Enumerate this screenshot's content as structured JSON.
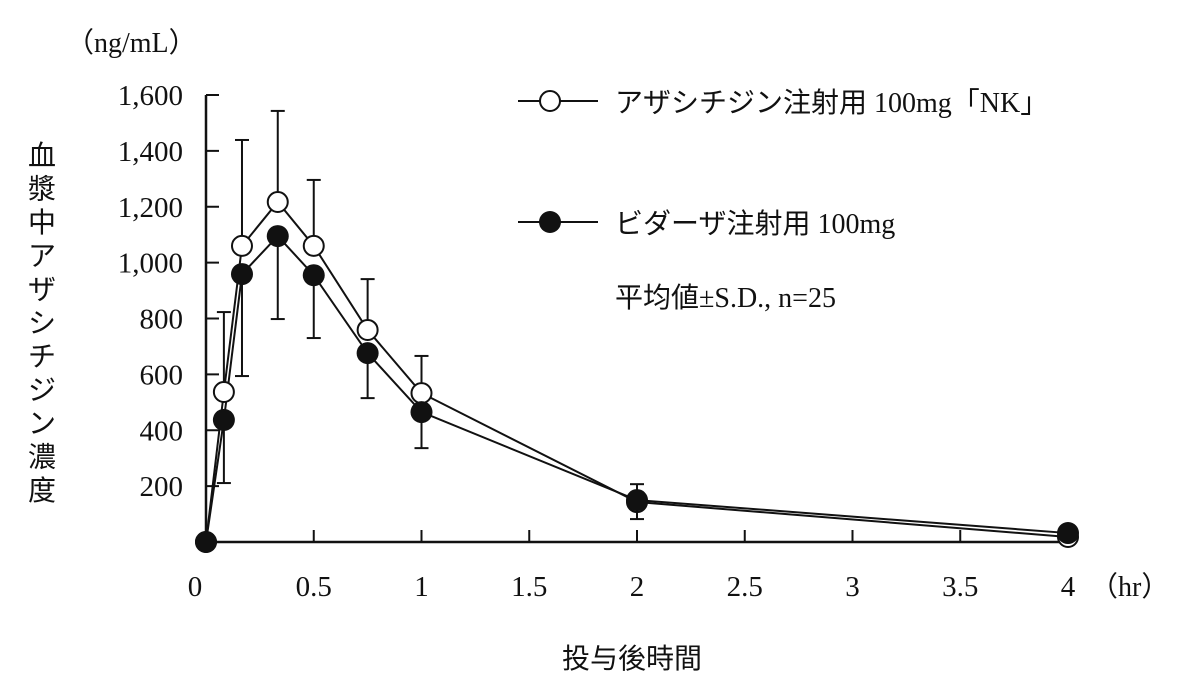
{
  "chart_data": {
    "type": "line",
    "unit_label": "（ng/mL）",
    "ylabel": "血漿中アザシチジン濃度",
    "xlabel": "投与後時間",
    "x_unit": "（hr）",
    "xlim": [
      0,
      4
    ],
    "ylim": [
      0,
      1600
    ],
    "x_ticks": [
      0,
      0.5,
      1,
      1.5,
      2,
      2.5,
      3,
      3.5,
      4
    ],
    "x_tick_labels": [
      "0",
      "0.5",
      "1",
      "1.5",
      "2",
      "2.5",
      "3",
      "3.5",
      "4"
    ],
    "y_ticks": [
      200,
      400,
      600,
      800,
      1000,
      1200,
      1400,
      1600
    ],
    "y_tick_labels": [
      "200",
      "400",
      "600",
      "800",
      "1,000",
      "1,200",
      "1,400",
      "1,600"
    ],
    "grid": false,
    "legend_placement": "top-right",
    "note": "平均値±S.D., n=25",
    "x": [
      0,
      0.083,
      0.167,
      0.333,
      0.5,
      0.75,
      1,
      2,
      4
    ],
    "series": [
      {
        "name": "アザシチジン注射用 100mg「NK」",
        "marker": "open-circle",
        "values": [
          0,
          537,
          1060,
          1217,
          1060,
          759,
          533,
          143,
          18
        ],
        "sd_upper": [
          0,
          286,
          379,
          326,
          236,
          182,
          133,
          64,
          0
        ]
      },
      {
        "name": "ビダーザ注射用 100mg",
        "marker": "filled-circle",
        "values": [
          0,
          437,
          959,
          1095,
          955,
          676,
          465,
          150,
          32
        ],
        "sd_lower": [
          0,
          226,
          365,
          297,
          225,
          161,
          129,
          68,
          0
        ]
      }
    ]
  }
}
